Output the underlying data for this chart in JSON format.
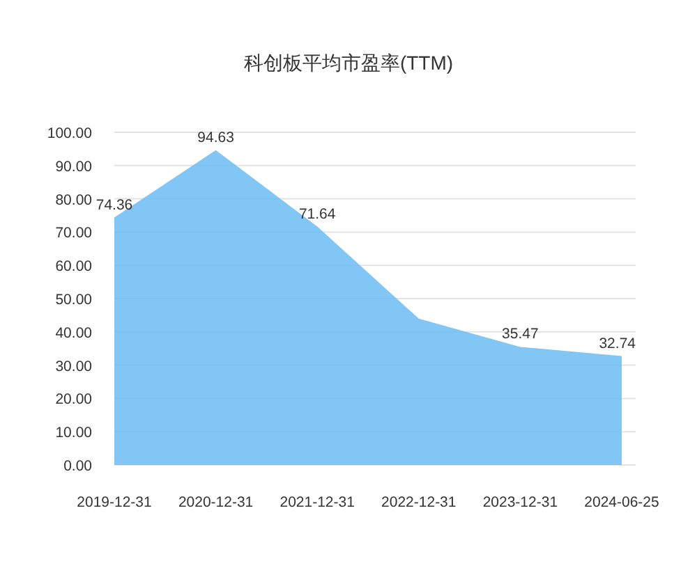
{
  "chart_data": {
    "type": "area",
    "title": "科创板平均市盈率(TTM)",
    "categories": [
      "2019-12-31",
      "2020-12-31",
      "2021-12-31",
      "2022-12-31",
      "2023-12-31",
      "2024-06-25"
    ],
    "series": [
      {
        "color": "#6bbcf2",
        "values": [
          74.36,
          94.63,
          71.64,
          44,
          35.47,
          32.74
        ],
        "value_labels": [
          "74.36",
          "94.63",
          "71.64",
          null,
          "35.47",
          "32.74"
        ]
      }
    ],
    "ylim": [
      0,
      100
    ],
    "yticks": [
      {
        "value": 0,
        "label": "0.00"
      },
      {
        "value": 10,
        "label": "10.00"
      },
      {
        "value": 20,
        "label": "20.00"
      },
      {
        "value": 30,
        "label": "30.00"
      },
      {
        "value": 40,
        "label": "40.00"
      },
      {
        "value": 50,
        "label": "50.00"
      },
      {
        "value": 60,
        "label": "60.00"
      },
      {
        "value": 70,
        "label": "70.00"
      },
      {
        "value": 80,
        "label": "80.00"
      },
      {
        "value": 90,
        "label": "90.00"
      },
      {
        "value": 100,
        "label": "100.00"
      }
    ],
    "grid": "y"
  }
}
